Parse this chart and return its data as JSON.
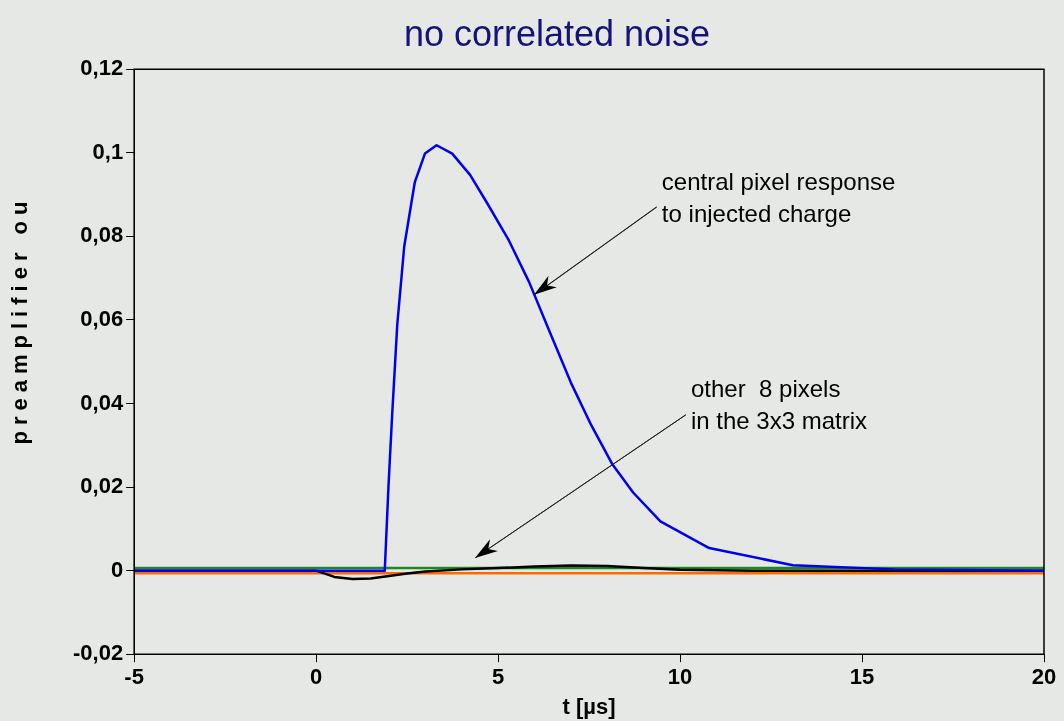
{
  "chart_data": {
    "type": "line",
    "title": "no correlated noise",
    "xlabel": "t [µs]",
    "ylabel": "preamplifier ou",
    "x": [
      -5,
      0,
      1.886,
      1.99,
      2.09,
      2.23,
      2.42,
      2.71,
      2.99,
      3.31,
      3.74,
      4.23,
      4.71,
      5.28,
      5.85,
      6.42,
      7.0,
      7.56,
      8.13,
      8.71,
      9.46,
      10.8,
      13.1,
      15.9,
      20
    ],
    "series": [
      {
        "color": "#0000ee",
        "values": [
          0,
          0,
          0,
          0.0205,
          0.0374,
          0.0589,
          0.0775,
          0.0929,
          0.0998,
          0.1018,
          0.0998,
          0.0947,
          0.0878,
          0.0793,
          0.0691,
          0.0571,
          0.045,
          0.0348,
          0.0256,
          0.0187,
          0.0118,
          0.0054,
          0.0013,
          0.0003,
          0
        ]
      },
      {
        "color": "#000000",
        "x": [
          -5,
          0,
          0.5,
          1,
          1.5,
          2,
          2.5,
          3,
          4,
          5,
          6,
          7,
          8,
          9,
          10,
          12,
          15,
          20
        ],
        "values": [
          0,
          0,
          -0.0015,
          -0.002,
          -0.0019,
          -0.0013,
          -0.0007,
          -0.0002,
          0.0003,
          0.0006,
          0.001,
          0.0012,
          0.0011,
          0.0006,
          0.0002,
          0,
          0,
          0
        ]
      },
      {
        "color": "#1a8a1a",
        "x": [
          -5,
          0,
          5,
          10,
          15,
          20
        ],
        "values": [
          0.0006,
          0.0006,
          0.0006,
          0.0006,
          0.0006,
          0.0006
        ]
      },
      {
        "color": "#ff6a00",
        "x": [
          -5,
          0,
          5,
          10,
          15,
          20
        ],
        "values": [
          -0.0006,
          -0.0006,
          -0.0006,
          -0.0006,
          -0.0006,
          -0.0006
        ]
      }
    ],
    "xlim": [
      -5,
      20
    ],
    "xticks": [
      -5,
      0,
      5,
      10,
      15,
      20
    ],
    "ylim": [
      -0.02,
      0.12
    ],
    "yticks": [
      {
        "value": -0.02,
        "label": "-0,02"
      },
      0,
      {
        "value": 0.02,
        "label": "0,02"
      },
      {
        "value": 0.04,
        "label": "0,04"
      },
      {
        "value": 0.06,
        "label": "0,06"
      },
      {
        "value": 0.08,
        "label": "0,08"
      },
      {
        "value": 0.1,
        "label": "0,1"
      },
      {
        "value": 0.12,
        "label": "0,12"
      }
    ],
    "annotations": [
      {
        "text": "central pixel response\nto injected charge",
        "x": 6,
        "y": 0.066
      },
      "other  8 pixels\nin the 3x3 matrix"
    ],
    "grid": false,
    "legend": false,
    "marker": "none",
    "line_style": "solid"
  }
}
